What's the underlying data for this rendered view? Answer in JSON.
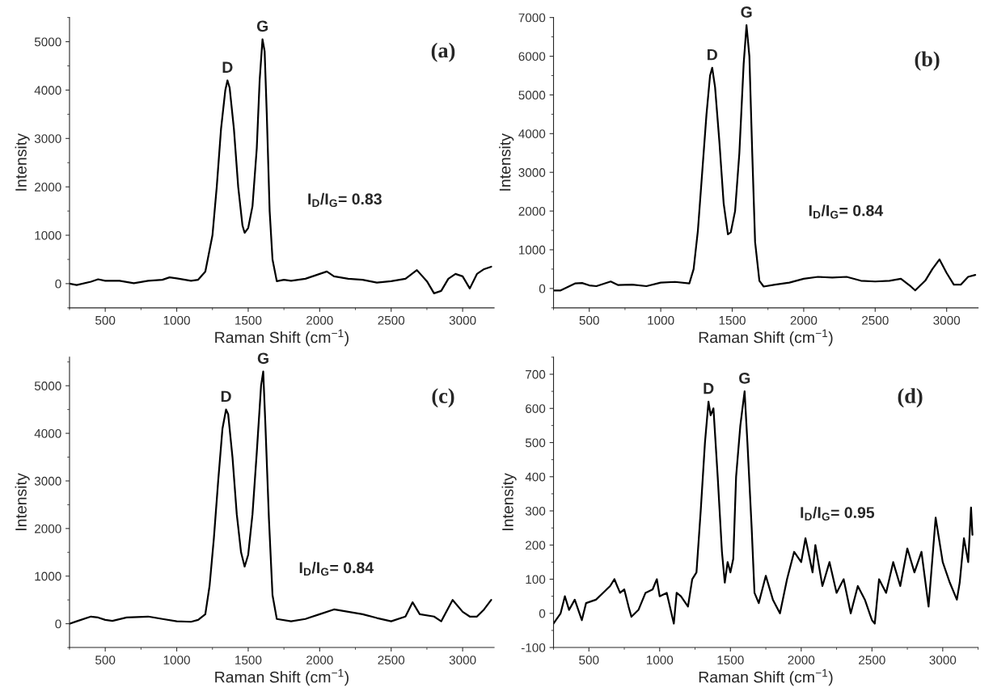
{
  "chart_data": [
    {
      "type": "line",
      "xlabel": "Raman Shift (cm$^{−1}$)",
      "ylabel": "Intensity",
      "xlim": [
        250,
        3220
      ],
      "xticks": [
        500,
        1000,
        1500,
        2000,
        2500,
        3000
      ],
      "ylim": [
        -500,
        5500
      ],
      "yticks": [
        0,
        1000,
        2000,
        3000,
        4000,
        5000
      ],
      "x": [
        250,
        300,
        400,
        450,
        500,
        600,
        700,
        800,
        900,
        950,
        1000,
        1100,
        1150,
        1200,
        1250,
        1280,
        1310,
        1340,
        1355,
        1370,
        1400,
        1430,
        1460,
        1475,
        1500,
        1530,
        1560,
        1580,
        1600,
        1615,
        1630,
        1650,
        1670,
        1700,
        1750,
        1800,
        1900,
        2000,
        2050,
        2100,
        2200,
        2300,
        2400,
        2500,
        2600,
        2680,
        2750,
        2800,
        2850,
        2900,
        2950,
        3000,
        3050,
        3100,
        3150,
        3200
      ],
      "series": [
        {
          "color": "#000000",
          "values": [
            0,
            -30,
            40,
            90,
            60,
            60,
            10,
            60,
            80,
            130,
            110,
            60,
            80,
            250,
            1000,
            2000,
            3200,
            4000,
            4200,
            4050,
            3200,
            2000,
            1200,
            1050,
            1150,
            1600,
            2800,
            4200,
            5050,
            4800,
            3500,
            1500,
            500,
            50,
            80,
            60,
            100,
            200,
            250,
            150,
            100,
            80,
            20,
            50,
            100,
            280,
            50,
            -200,
            -150,
            100,
            200,
            150,
            -100,
            200,
            300,
            350
          ]
        }
      ],
      "annotations": [
        {
          "text": "D",
          "x": 1355,
          "y": 4200
        },
        {
          "text": "G",
          "x": 1600,
          "y": 5050
        },
        "(a)",
        "I$_{D}$/I$_{G}$= 0.83"
      ]
    },
    {
      "type": "line",
      "xlabel": "Raman Shift (cm$^{−1}$)",
      "ylabel": "Intensity",
      "xlim": [
        250,
        3220
      ],
      "xticks": [
        500,
        1000,
        1500,
        2000,
        2500,
        3000
      ],
      "ylim": [
        -500,
        7000
      ],
      "yticks": [
        0,
        1000,
        2000,
        3000,
        4000,
        5000,
        6000,
        7000
      ],
      "x": [
        250,
        300,
        400,
        450,
        500,
        550,
        650,
        700,
        800,
        900,
        1000,
        1100,
        1200,
        1230,
        1260,
        1290,
        1320,
        1345,
        1360,
        1380,
        1410,
        1440,
        1470,
        1490,
        1520,
        1550,
        1580,
        1600,
        1620,
        1640,
        1660,
        1690,
        1720,
        1800,
        1900,
        2000,
        2100,
        2200,
        2300,
        2400,
        2500,
        2600,
        2680,
        2750,
        2780,
        2850,
        2900,
        2950,
        3000,
        3050,
        3100,
        3150,
        3200
      ],
      "series": [
        {
          "color": "#000000",
          "values": [
            -50,
            -50,
            130,
            140,
            80,
            60,
            180,
            90,
            100,
            60,
            150,
            170,
            130,
            500,
            1500,
            3000,
            4500,
            5500,
            5700,
            5200,
            3800,
            2200,
            1400,
            1450,
            2000,
            3500,
            5800,
            6800,
            6000,
            3500,
            1200,
            200,
            50,
            100,
            150,
            250,
            300,
            280,
            300,
            200,
            180,
            200,
            250,
            50,
            -50,
            200,
            500,
            750,
            400,
            100,
            100,
            300,
            350
          ]
        }
      ],
      "annotations": [
        {
          "text": "D",
          "x": 1360,
          "y": 5700
        },
        {
          "text": "G",
          "x": 1600,
          "y": 6800
        },
        "(b)",
        "I$_{D}$/I$_{G}$= 0.84"
      ]
    },
    {
      "type": "line",
      "xlabel": "Raman Shift (cm$^{−1}$)",
      "ylabel": "Intensity",
      "xlim": [
        250,
        3220
      ],
      "xticks": [
        500,
        1000,
        1500,
        2000,
        2500,
        3000
      ],
      "ylim": [
        -500,
        5600
      ],
      "yticks": [
        0,
        1000,
        2000,
        3000,
        4000,
        5000
      ],
      "x": [
        250,
        300,
        400,
        450,
        500,
        550,
        650,
        800,
        900,
        1000,
        1100,
        1150,
        1200,
        1230,
        1260,
        1290,
        1320,
        1345,
        1360,
        1390,
        1420,
        1450,
        1475,
        1500,
        1530,
        1560,
        1590,
        1605,
        1620,
        1645,
        1670,
        1700,
        1800,
        1900,
        2000,
        2100,
        2200,
        2300,
        2400,
        2500,
        2600,
        2650,
        2700,
        2800,
        2850,
        2930,
        3000,
        3050,
        3100,
        3150,
        3200
      ],
      "series": [
        {
          "color": "#000000",
          "values": [
            0,
            50,
            150,
            130,
            80,
            60,
            130,
            150,
            100,
            50,
            40,
            80,
            200,
            800,
            1800,
            3000,
            4100,
            4500,
            4400,
            3500,
            2300,
            1500,
            1200,
            1450,
            2300,
            3600,
            5000,
            5300,
            4200,
            2200,
            600,
            100,
            50,
            100,
            200,
            300,
            250,
            200,
            120,
            50,
            150,
            450,
            200,
            150,
            50,
            500,
            250,
            150,
            150,
            300,
            500
          ]
        }
      ],
      "annotations": [
        {
          "text": "D",
          "x": 1345,
          "y": 4500
        },
        {
          "text": "G",
          "x": 1605,
          "y": 5300
        },
        "(c)",
        "I$_{D}$/I$_{G}$= 0.84"
      ]
    },
    {
      "type": "line",
      "xlabel": "Raman Shift (cm$^{−1}$)",
      "ylabel": "Intensity",
      "xlim": [
        250,
        3250
      ],
      "xticks": [
        500,
        1000,
        1500,
        2000,
        2500,
        3000
      ],
      "ylim": [
        -100,
        750
      ],
      "yticks": [
        -100,
        0,
        100,
        200,
        300,
        400,
        500,
        600,
        700
      ],
      "x": [
        250,
        300,
        330,
        360,
        400,
        450,
        480,
        550,
        600,
        650,
        680,
        720,
        750,
        780,
        800,
        850,
        900,
        950,
        980,
        1000,
        1050,
        1100,
        1120,
        1150,
        1200,
        1230,
        1260,
        1290,
        1320,
        1345,
        1360,
        1380,
        1410,
        1440,
        1460,
        1480,
        1500,
        1520,
        1540,
        1570,
        1600,
        1620,
        1650,
        1670,
        1700,
        1750,
        1800,
        1850,
        1900,
        1950,
        2000,
        2030,
        2080,
        2100,
        2150,
        2200,
        2250,
        2300,
        2350,
        2400,
        2450,
        2500,
        2520,
        2550,
        2600,
        2650,
        2700,
        2750,
        2800,
        2850,
        2900,
        2950,
        3000,
        3050,
        3100,
        3120,
        3150,
        3180,
        3200,
        3210
      ],
      "series": [
        {
          "color": "#000000",
          "values": [
            -30,
            0,
            50,
            10,
            40,
            -20,
            30,
            40,
            60,
            80,
            100,
            60,
            70,
            20,
            -10,
            10,
            60,
            70,
            100,
            50,
            60,
            -30,
            60,
            50,
            20,
            100,
            120,
            300,
            500,
            620,
            580,
            600,
            400,
            180,
            90,
            150,
            120,
            160,
            400,
            550,
            650,
            500,
            250,
            60,
            30,
            110,
            40,
            0,
            100,
            180,
            150,
            220,
            120,
            200,
            80,
            150,
            60,
            100,
            0,
            80,
            40,
            -20,
            -30,
            100,
            60,
            150,
            80,
            190,
            120,
            180,
            20,
            280,
            150,
            90,
            40,
            90,
            220,
            150,
            310,
            230
          ]
        }
      ],
      "annotations": [
        {
          "text": "D",
          "x": 1345,
          "y": 620
        },
        {
          "text": "G",
          "x": 1600,
          "y": 650
        },
        "(d)",
        "I$_{D}$/I$_{G}$= 0.95"
      ]
    }
  ]
}
